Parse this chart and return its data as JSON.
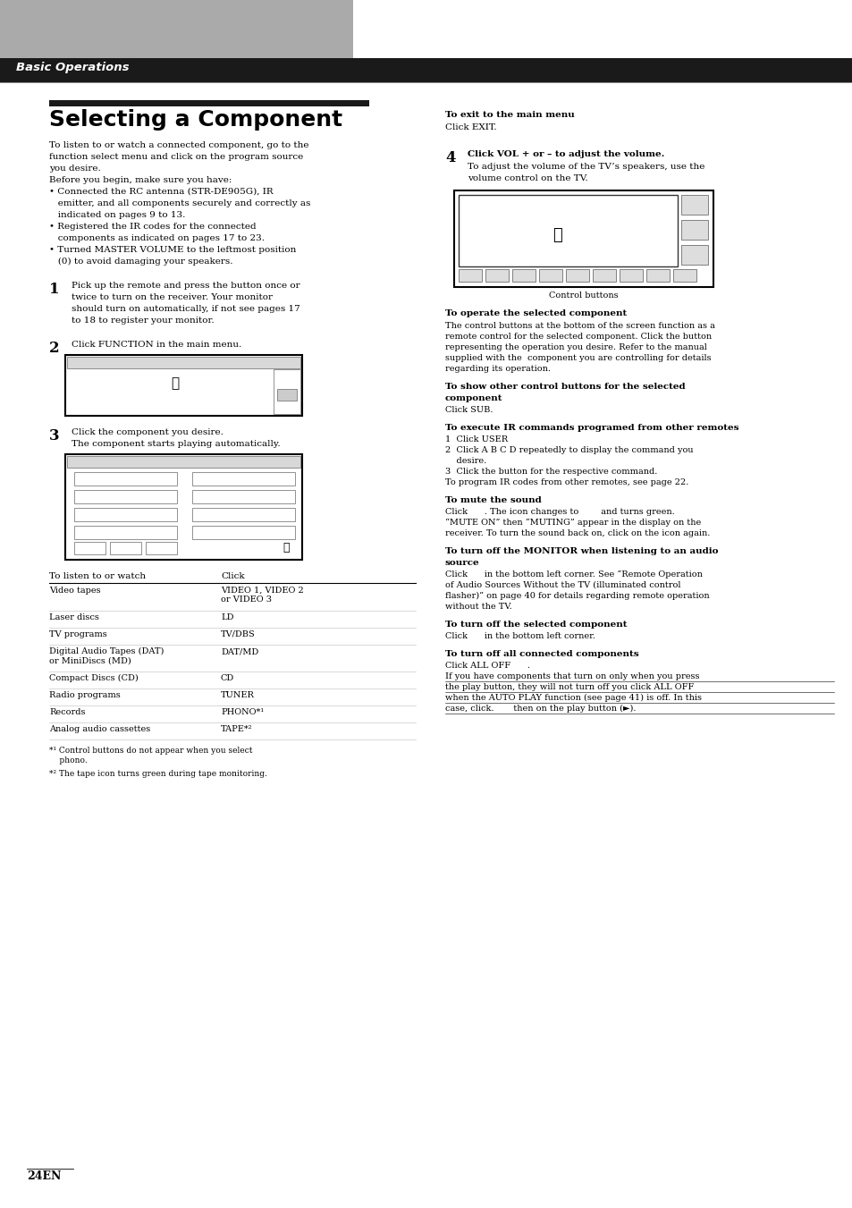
{
  "page_bg": "#ffffff",
  "header_bar_color": "#1a1a1a",
  "header_text": "Basic Operations",
  "header_text_color": "#ffffff",
  "title": "Selecting a Component",
  "page_number": "24EN",
  "footnote1": "*¹ Control buttons do not appear when you select\n    phono.",
  "footnote2": "*² The tape icon turns green during tape monitoring.",
  "table_rows": [
    [
      "Video tapes",
      "VIDEO 1, VIDEO 2\nor VIDEO 3"
    ],
    [
      "Laser discs",
      "LD"
    ],
    [
      "TV programs",
      "TV/DBS"
    ],
    [
      "Digital Audio Tapes (DAT)\nor MiniDiscs (MD)",
      "DAT/MD"
    ],
    [
      "Compact Discs (CD)",
      "CD"
    ],
    [
      "Radio programs",
      "TUNER"
    ],
    [
      "Records",
      "PHONO*¹"
    ],
    [
      "Analog audio cassettes",
      "TAPE*²"
    ]
  ]
}
